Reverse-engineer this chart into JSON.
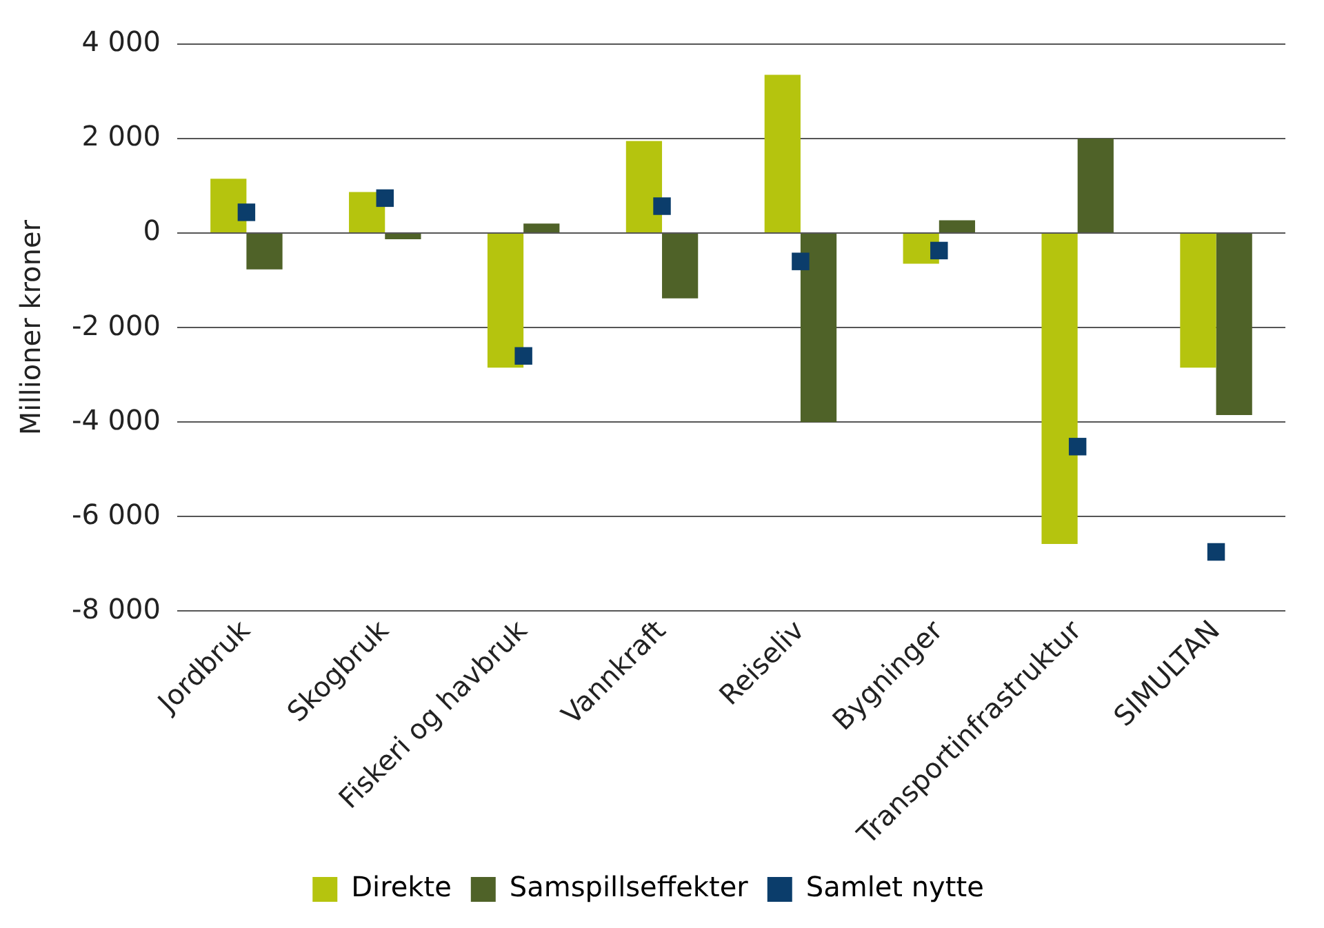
{
  "chart_data": {
    "type": "bar",
    "ylabel": "Millioner kroner",
    "categories": [
      "Jordbruk",
      "Skogbruk",
      "Fiskeri og havbruk",
      "Vannkraft",
      "Reiseliv",
      "Bygninger",
      "Transportinfrastruktur",
      "SIMULTAN"
    ],
    "series": [
      {
        "name": "Direkte",
        "color": "#b5c40e",
        "values": [
          1150,
          870,
          -2850,
          1950,
          3350,
          -650,
          -6580,
          -2850
        ]
      },
      {
        "name": "Samspillseffekter",
        "color": "#4f6228",
        "values": [
          -770,
          -130,
          200,
          -1380,
          -4000,
          270,
          2000,
          -3850
        ]
      },
      {
        "name": "Samlet nytte",
        "type": "scatter",
        "marker": "square",
        "color": "#0b3d6b",
        "x": [
          "Jordbruk",
          "Skogbruk",
          "Fiskeri og havbruk",
          "Vannkraft",
          "Reiseliv",
          "Bygninger",
          "Transportinfrastruktur",
          "SIMULTAN"
        ],
        "values": [
          440,
          740,
          -2600,
          570,
          -600,
          -370,
          -4520,
          -6750
        ]
      }
    ],
    "ylim": [
      -8000,
      4000
    ],
    "yticks": [
      {
        "value": -8000,
        "label": "-8 000"
      },
      {
        "value": -6000,
        "label": "-6 000"
      },
      {
        "value": -4000,
        "label": "-4 000"
      },
      {
        "value": -2000,
        "label": "-2 000"
      },
      {
        "value": 0,
        "label": "0"
      },
      {
        "value": 2000,
        "label": "2 000"
      },
      {
        "value": 4000,
        "label": "4 000"
      }
    ],
    "grid": "y",
    "legend": "bottom"
  }
}
